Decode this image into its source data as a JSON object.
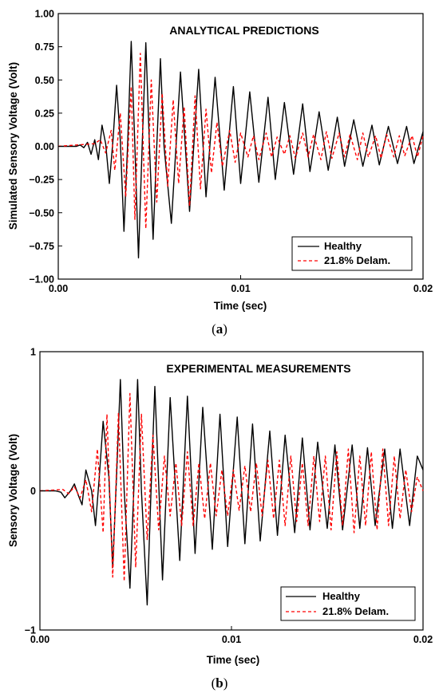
{
  "chart_data": [
    {
      "type": "line",
      "panel_caption": "a",
      "title": "ANALYTICAL PREDICTIONS",
      "xlabel": "Time (sec)",
      "ylabel": "Simulated Sensory Voltage (Volt)",
      "xlim": [
        0,
        0.02
      ],
      "ylim": [
        -1.0,
        1.0
      ],
      "x_ticks": [
        0,
        0.01,
        0.02
      ],
      "x_tick_labels": [
        "0.00",
        "0.01",
        "0.02"
      ],
      "y_ticks": [
        -1.0,
        -0.75,
        -0.5,
        -0.25,
        0,
        0.25,
        0.5,
        0.75,
        1.0
      ],
      "y_tick_labels": [
        "−1.00",
        "−0.75",
        "−0.50",
        "−0.25",
        "0.00",
        "0.25",
        "0.50",
        "0.75",
        "1.00"
      ],
      "grid": false,
      "legend_position": "bottom-right",
      "series": [
        {
          "name": "Healthy",
          "color": "#000000",
          "style": "solid",
          "x": [
            0,
            0.001,
            0.0012,
            0.0014,
            0.0016,
            0.0018,
            0.002,
            0.0022,
            0.0024,
            0.0026,
            0.0028,
            0.003,
            0.0032,
            0.0034,
            0.0036,
            0.0038,
            0.004,
            0.0042,
            0.0044,
            0.0046,
            0.0048,
            0.005,
            0.0052,
            0.0054,
            0.0056,
            0.0058,
            0.0062,
            0.0067,
            0.0072,
            0.0077,
            0.0081,
            0.0086,
            0.0091,
            0.0096,
            0.01,
            0.0105,
            0.011,
            0.0115,
            0.0119,
            0.0124,
            0.0129,
            0.0134,
            0.0138,
            0.0143,
            0.0148,
            0.0153,
            0.0157,
            0.0162,
            0.0167,
            0.0172,
            0.0176,
            0.0181,
            0.0186,
            0.0191,
            0.0195,
            0.02
          ],
          "y": [
            0,
            0,
            0.01,
            -0.01,
            0.03,
            -0.06,
            0.05,
            -0.1,
            0.16,
            0.02,
            -0.28,
            0.05,
            0.46,
            0.05,
            -0.64,
            0.0,
            0.79,
            0.0,
            -0.84,
            0.0,
            0.78,
            0.0,
            -0.7,
            0.0,
            0.66,
            0.0,
            -0.58,
            0.56,
            -0.49,
            0.58,
            -0.38,
            0.52,
            -0.33,
            0.45,
            -0.28,
            0.41,
            -0.27,
            0.37,
            -0.25,
            0.33,
            -0.21,
            0.32,
            -0.19,
            0.26,
            -0.18,
            0.22,
            -0.15,
            0.2,
            -0.15,
            0.16,
            -0.14,
            0.15,
            -0.13,
            0.15,
            -0.13,
            0.11
          ]
        },
        {
          "name": "21.8% Delam.",
          "color": "#ff0000",
          "style": "dashed",
          "x": [
            0,
            0.002,
            0.0023,
            0.0026,
            0.0029,
            0.0031,
            0.0034,
            0.0037,
            0.004,
            0.0042,
            0.0045,
            0.0048,
            0.0051,
            0.0054,
            0.0057,
            0.006,
            0.0063,
            0.0066,
            0.0069,
            0.0072,
            0.0075,
            0.0078,
            0.0081,
            0.0084,
            0.0087,
            0.009,
            0.0094,
            0.0097,
            0.01,
            0.0104,
            0.0107,
            0.011,
            0.0114,
            0.0117,
            0.012,
            0.0124,
            0.0127,
            0.013,
            0.0134,
            0.0137,
            0.014,
            0.0144,
            0.0147,
            0.015,
            0.0154,
            0.0157,
            0.016,
            0.0164,
            0.0167,
            0.017,
            0.0174,
            0.0177,
            0.018,
            0.0184,
            0.0187,
            0.019,
            0.0194,
            0.0197,
            0.02
          ],
          "y": [
            0,
            0.02,
            0.05,
            -0.05,
            0.12,
            -0.18,
            0.25,
            -0.38,
            0.45,
            -0.55,
            0.7,
            -0.62,
            0.5,
            -0.42,
            0.4,
            -0.3,
            0.35,
            -0.28,
            0.3,
            -0.45,
            0.38,
            -0.32,
            0.28,
            -0.2,
            0.18,
            -0.15,
            0.12,
            -0.12,
            0.1,
            -0.08,
            0.08,
            -0.1,
            0.1,
            -0.08,
            0.07,
            -0.06,
            0.08,
            -0.09,
            0.1,
            -0.08,
            0.09,
            -0.1,
            0.11,
            -0.09,
            0.1,
            -0.08,
            0.09,
            -0.1,
            0.1,
            -0.08,
            0.08,
            -0.09,
            0.09,
            -0.08,
            0.08,
            -0.07,
            0.08,
            -0.08,
            0.08
          ]
        }
      ]
    },
    {
      "type": "line",
      "panel_caption": "b",
      "title": "EXPERIMENTAL MEASUREMENTS",
      "xlabel": "Time (sec)",
      "ylabel": "Sensory Voltage (Volt)",
      "xlim": [
        0,
        0.02
      ],
      "ylim": [
        -1,
        1
      ],
      "x_ticks": [
        0,
        0.01,
        0.02
      ],
      "x_tick_labels": [
        "0.00",
        "0.01",
        "0.02"
      ],
      "y_ticks": [
        -1,
        0,
        1
      ],
      "y_tick_labels": [
        "−1",
        "0",
        "1"
      ],
      "grid": false,
      "legend_position": "bottom-right",
      "series": [
        {
          "name": "Healthy",
          "color": "#000000",
          "style": "solid",
          "x": [
            0,
            0.0008,
            0.0011,
            0.0013,
            0.0016,
            0.0018,
            0.002,
            0.0022,
            0.0024,
            0.0027,
            0.0029,
            0.0031,
            0.0033,
            0.0036,
            0.0038,
            0.004,
            0.0042,
            0.0044,
            0.0047,
            0.0049,
            0.0051,
            0.0053,
            0.0056,
            0.0058,
            0.006,
            0.0064,
            0.0068,
            0.0073,
            0.0077,
            0.0081,
            0.0085,
            0.009,
            0.0094,
            0.0098,
            0.0103,
            0.0107,
            0.0111,
            0.0115,
            0.012,
            0.0124,
            0.0128,
            0.0133,
            0.0137,
            0.0141,
            0.0145,
            0.015,
            0.0154,
            0.0158,
            0.0163,
            0.0167,
            0.0171,
            0.0175,
            0.018,
            0.0184,
            0.0188,
            0.0193,
            0.0197,
            0.02
          ],
          "y": [
            0,
            0,
            -0.01,
            -0.05,
            0,
            0.05,
            -0.03,
            -0.1,
            0.15,
            0.0,
            -0.25,
            0.1,
            0.5,
            0.1,
            -0.55,
            0.1,
            0.8,
            0.0,
            -0.7,
            0.0,
            0.8,
            0.0,
            -0.82,
            0.0,
            0.75,
            -0.64,
            0.67,
            -0.5,
            0.68,
            -0.45,
            0.6,
            -0.42,
            0.55,
            -0.4,
            0.53,
            -0.38,
            0.48,
            -0.36,
            0.43,
            -0.32,
            0.4,
            -0.3,
            0.38,
            -0.28,
            0.35,
            -0.27,
            0.33,
            -0.28,
            0.33,
            -0.27,
            0.31,
            -0.25,
            0.3,
            -0.27,
            0.3,
            -0.25,
            0.25,
            0.15
          ]
        },
        {
          "name": "21.8% Delam.",
          "color": "#ff0000",
          "style": "dashed",
          "x": [
            0,
            0.0012,
            0.0015,
            0.0018,
            0.0021,
            0.0024,
            0.0027,
            0.003,
            0.0033,
            0.0035,
            0.0038,
            0.0041,
            0.0044,
            0.0047,
            0.005,
            0.0053,
            0.0056,
            0.0059,
            0.0062,
            0.0065,
            0.0068,
            0.0071,
            0.0074,
            0.0077,
            0.008,
            0.0083,
            0.0086,
            0.0089,
            0.0092,
            0.0095,
            0.0098,
            0.0101,
            0.0104,
            0.0107,
            0.011,
            0.0113,
            0.0116,
            0.0119,
            0.0122,
            0.0125,
            0.0128,
            0.0131,
            0.0134,
            0.0137,
            0.014,
            0.0143,
            0.0146,
            0.0149,
            0.0152,
            0.0155,
            0.0158,
            0.0161,
            0.0164,
            0.0167,
            0.017,
            0.0173,
            0.0176,
            0.0179,
            0.0182,
            0.0185,
            0.0188,
            0.0191,
            0.0194,
            0.0197,
            0.02
          ],
          "y": [
            0,
            0.01,
            -0.02,
            0.03,
            -0.05,
            0.08,
            -0.15,
            0.3,
            -0.3,
            0.55,
            -0.62,
            0.56,
            -0.65,
            0.7,
            -0.55,
            0.55,
            -0.35,
            0.4,
            -0.28,
            0.25,
            -0.18,
            0.2,
            -0.25,
            0.28,
            -0.25,
            0.2,
            -0.2,
            0.2,
            -0.18,
            0.15,
            -0.18,
            0.15,
            -0.14,
            0.18,
            -0.15,
            0.2,
            -0.18,
            0.22,
            -0.2,
            0.22,
            -0.25,
            0.25,
            -0.22,
            0.2,
            -0.25,
            0.25,
            -0.22,
            0.25,
            -0.28,
            0.28,
            -0.25,
            0.3,
            -0.3,
            0.25,
            -0.25,
            0.28,
            -0.28,
            0.3,
            -0.25,
            0.25,
            -0.2,
            0.15,
            -0.15,
            0.1,
            0.0
          ]
        }
      ]
    }
  ]
}
